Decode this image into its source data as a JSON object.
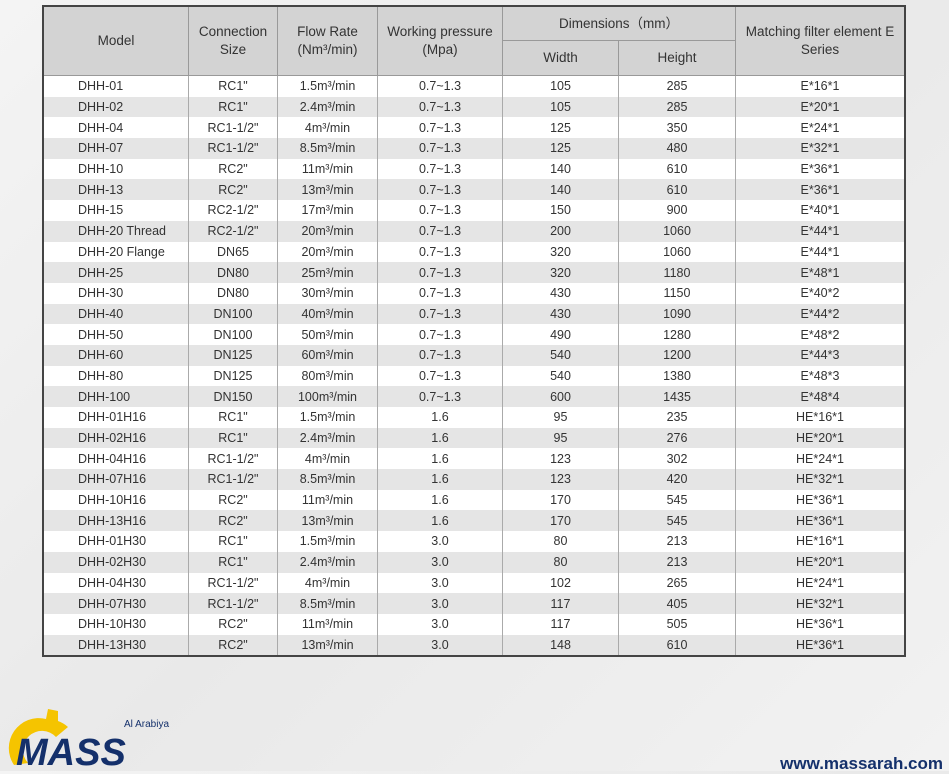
{
  "headers": {
    "model": "Model",
    "connection": "Connection Size",
    "flow": "Flow Rate (Nm³/min)",
    "pressure": "Working pressure (Mpa)",
    "dimensions": "Dimensions（mm）",
    "width": "Width",
    "height": "Height",
    "filter": "Matching filter element E Series"
  },
  "rows": [
    [
      "DHH-01",
      "RC1\"",
      "1.5m³/min",
      "0.7~1.3",
      "105",
      "285",
      "E*16*1"
    ],
    [
      "DHH-02",
      "RC1\"",
      "2.4m³/min",
      "0.7~1.3",
      "105",
      "285",
      "E*20*1"
    ],
    [
      "DHH-04",
      "RC1-1/2\"",
      "4m³/min",
      "0.7~1.3",
      "125",
      "350",
      "E*24*1"
    ],
    [
      "DHH-07",
      "RC1-1/2\"",
      "8.5m³/min",
      "0.7~1.3",
      "125",
      "480",
      "E*32*1"
    ],
    [
      "DHH-10",
      "RC2\"",
      "11m³/min",
      "0.7~1.3",
      "140",
      "610",
      "E*36*1"
    ],
    [
      "DHH-13",
      "RC2\"",
      "13m³/min",
      "0.7~1.3",
      "140",
      "610",
      "E*36*1"
    ],
    [
      "DHH-15",
      "RC2-1/2\"",
      "17m³/min",
      "0.7~1.3",
      "150",
      "900",
      "E*40*1"
    ],
    [
      "DHH-20 Thread",
      "RC2-1/2\"",
      "20m³/min",
      "0.7~1.3",
      "200",
      "1060",
      "E*44*1"
    ],
    [
      "DHH-20 Flange",
      "DN65",
      "20m³/min",
      "0.7~1.3",
      "320",
      "1060",
      "E*44*1"
    ],
    [
      "DHH-25",
      "DN80",
      "25m³/min",
      "0.7~1.3",
      "320",
      "1180",
      "E*48*1"
    ],
    [
      "DHH-30",
      "DN80",
      "30m³/min",
      "0.7~1.3",
      "430",
      "1150",
      "E*40*2"
    ],
    [
      "DHH-40",
      "DN100",
      "40m³/min",
      "0.7~1.3",
      "430",
      "1090",
      "E*44*2"
    ],
    [
      "DHH-50",
      "DN100",
      "50m³/min",
      "0.7~1.3",
      "490",
      "1280",
      "E*48*2"
    ],
    [
      "DHH-60",
      "DN125",
      "60m³/min",
      "0.7~1.3",
      "540",
      "1200",
      "E*44*3"
    ],
    [
      "DHH-80",
      "DN125",
      "80m³/min",
      "0.7~1.3",
      "540",
      "1380",
      "E*48*3"
    ],
    [
      "DHH-100",
      "DN150",
      "100m³/min",
      "0.7~1.3",
      "600",
      "1435",
      "E*48*4"
    ],
    [
      "DHH-01H16",
      "RC1\"",
      "1.5m³/min",
      "1.6",
      "95",
      "235",
      "HE*16*1"
    ],
    [
      "DHH-02H16",
      "RC1\"",
      "2.4m³/min",
      "1.6",
      "95",
      "276",
      "HE*20*1"
    ],
    [
      "DHH-04H16",
      "RC1-1/2\"",
      "4m³/min",
      "1.6",
      "123",
      "302",
      "HE*24*1"
    ],
    [
      "DHH-07H16",
      "RC1-1/2\"",
      "8.5m³/min",
      "1.6",
      "123",
      "420",
      "HE*32*1"
    ],
    [
      "DHH-10H16",
      "RC2\"",
      "11m³/min",
      "1.6",
      "170",
      "545",
      "HE*36*1"
    ],
    [
      "DHH-13H16",
      "RC2\"",
      "13m³/min",
      "1.6",
      "170",
      "545",
      "HE*36*1"
    ],
    [
      "DHH-01H30",
      "RC1\"",
      "1.5m³/min",
      "3.0",
      "80",
      "213",
      "HE*16*1"
    ],
    [
      "DHH-02H30",
      "RC1\"",
      "2.4m³/min",
      "3.0",
      "80",
      "213",
      "HE*20*1"
    ],
    [
      "DHH-04H30",
      "RC1-1/2\"",
      "4m³/min",
      "3.0",
      "102",
      "265",
      "HE*24*1"
    ],
    [
      "DHH-07H30",
      "RC1-1/2\"",
      "8.5m³/min",
      "3.0",
      "117",
      "405",
      "HE*32*1"
    ],
    [
      "DHH-10H30",
      "RC2\"",
      "11m³/min",
      "3.0",
      "117",
      "505",
      "HE*36*1"
    ],
    [
      "DHH-13H30",
      "RC2\"",
      "13m³/min",
      "3.0",
      "148",
      "610",
      "HE*36*1"
    ]
  ],
  "logo": {
    "text": "MASS",
    "subtitle": "Al Arabiya",
    "brand_color": "#14306b",
    "accent_color": "#f5c400"
  },
  "footer": {
    "url": "www.massarah.com"
  }
}
